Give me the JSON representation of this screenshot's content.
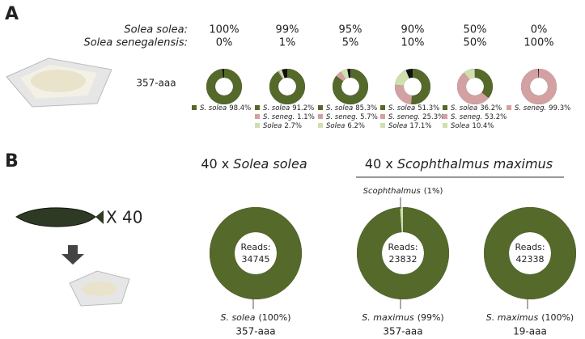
{
  "panel_a": {
    "label": "A",
    "rows": [
      "Solea solea:",
      "Solea senegalensis:"
    ],
    "sample": "357-aaa",
    "charts": [
      {
        "type": "donut",
        "mixture": [
          "100%",
          "0%"
        ],
        "names": [
          "S. solea"
        ],
        "values": [
          98.4
        ],
        "value_labels": [
          "98.4%"
        ],
        "colors": [
          "#55692b"
        ]
      },
      {
        "type": "donut",
        "mixture": [
          "99%",
          "1%"
        ],
        "names": [
          "S. solea",
          "S. seneg.",
          "Solea"
        ],
        "values": [
          91.2,
          1.1,
          2.7
        ],
        "value_labels": [
          "91.2%",
          "1.1%",
          "2.7%"
        ],
        "colors": [
          "#55692b",
          "#d3a1a2",
          "#cfdfae"
        ]
      },
      {
        "type": "donut",
        "mixture": [
          "95%",
          "5%"
        ],
        "names": [
          "S. solea",
          "S. seneg.",
          "Solea"
        ],
        "values": [
          85.3,
          5.7,
          6.2
        ],
        "value_labels": [
          "85.3%",
          "5.7%",
          "6.2%"
        ],
        "colors": [
          "#55692b",
          "#d3a1a2",
          "#cfdfae"
        ]
      },
      {
        "type": "donut",
        "mixture": [
          "90%",
          "10%"
        ],
        "names": [
          "S. solea",
          "S. seneg.",
          "Solea"
        ],
        "values": [
          51.3,
          25.3,
          17.1
        ],
        "value_labels": [
          "51.3%",
          "25.3%",
          "17.1%"
        ],
        "colors": [
          "#55692b",
          "#d3a1a2",
          "#cfdfae"
        ]
      },
      {
        "type": "donut",
        "mixture": [
          "50%",
          "50%"
        ],
        "names": [
          "S. solea",
          "S. seneg.",
          "Solea"
        ],
        "values": [
          36.2,
          53.2,
          10.4
        ],
        "value_labels": [
          "36.2%",
          "53.2%",
          "10.4%"
        ],
        "colors": [
          "#55692b",
          "#d3a1a2",
          "#cfdfae"
        ]
      },
      {
        "type": "donut",
        "mixture": [
          "0%",
          "100%"
        ],
        "names": [
          "S. seneg."
        ],
        "values": [
          99.3
        ],
        "value_labels": [
          "99.3%"
        ],
        "colors": [
          "#d3a1a2"
        ]
      }
    ]
  },
  "panel_b": {
    "label": "B",
    "multiplier": "X 40",
    "reads_label": "Reads:",
    "groups": [
      {
        "prefix": "40 x",
        "species": "Solea solea"
      },
      {
        "prefix": "40 x",
        "species": "Scophthalmus maximus"
      }
    ],
    "charts": [
      {
        "type": "donut",
        "reads": 34745,
        "names": [
          "S. solea"
        ],
        "values": [
          100
        ],
        "value_labels": [
          "(100%)"
        ],
        "colors": [
          "#55692b"
        ],
        "sample": "357-aaa"
      },
      {
        "type": "donut",
        "reads": 23832,
        "names": [
          "S. maximus",
          "Scophthalmus"
        ],
        "values": [
          99,
          1
        ],
        "value_labels": [
          "(99%)",
          "(1%)"
        ],
        "colors": [
          "#55692b",
          "#cfdfae"
        ],
        "sample": "357-aaa"
      },
      {
        "type": "donut",
        "reads": 42338,
        "names": [
          "S. maximus"
        ],
        "values": [
          100
        ],
        "value_labels": [
          "(100%)"
        ],
        "colors": [
          "#55692b"
        ],
        "sample": "19-aaa"
      }
    ]
  }
}
